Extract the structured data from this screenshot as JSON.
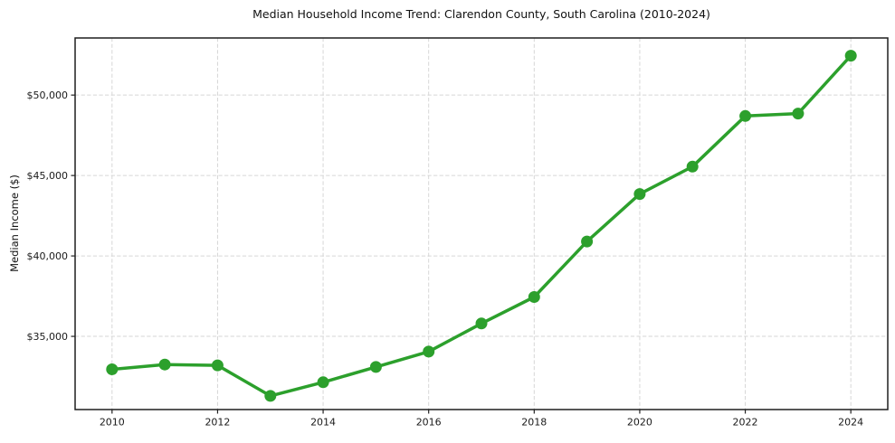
{
  "figure": {
    "background": "#ffffff"
  },
  "chart_data": {
    "type": "line",
    "title": "Median Household Income Trend: Clarendon County, South Carolina (2010-2024)",
    "xlabel": "",
    "ylabel": "Median Income ($)",
    "x": [
      2010,
      2011,
      2012,
      2013,
      2014,
      2015,
      2016,
      2017,
      2018,
      2019,
      2020,
      2021,
      2022,
      2023,
      2024
    ],
    "values": [
      32950,
      33250,
      33200,
      31300,
      32150,
      33100,
      34050,
      35800,
      37450,
      40900,
      43850,
      45550,
      48700,
      48850,
      52450
    ],
    "x_ticks": [
      2010,
      2012,
      2014,
      2016,
      2018,
      2020,
      2022,
      2024
    ],
    "x_tick_labels": [
      "2010",
      "2012",
      "2014",
      "2016",
      "2018",
      "2020",
      "2022",
      "2024"
    ],
    "y_ticks": [
      35000,
      40000,
      45000,
      50000
    ],
    "y_tick_labels": [
      "$35,000",
      "$40,000",
      "$45,000",
      "$50,000"
    ],
    "xlim": [
      2009.3,
      2024.7
    ],
    "ylim": [
      30450,
      53550
    ],
    "grid": true,
    "grid_style": "dashed",
    "legend": false,
    "marker": "circle",
    "line_color": "#2ca02c",
    "grid_color": "#d6d6d6",
    "spine_color": "#1f1f1f",
    "tick_color": "#1a1a1a"
  }
}
